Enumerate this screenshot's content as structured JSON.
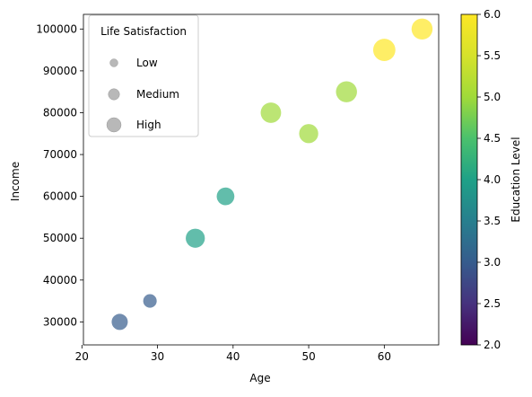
{
  "chart_data": {
    "type": "scatter",
    "title": "",
    "xlabel": "Age",
    "ylabel": "Income",
    "xlim": [
      20.2,
      67.2
    ],
    "ylim": [
      24500,
      103500
    ],
    "xticks": [
      20,
      30,
      40,
      50,
      60
    ],
    "yticks": [
      30000,
      40000,
      50000,
      60000,
      70000,
      80000,
      90000,
      100000
    ],
    "points": [
      {
        "x": 25,
        "y": 30000,
        "education": 3,
        "satisfaction": 1
      },
      {
        "x": 29,
        "y": 35000,
        "education": 3,
        "satisfaction": 0.7
      },
      {
        "x": 35,
        "y": 50000,
        "education": 4,
        "satisfaction": 1.4
      },
      {
        "x": 39,
        "y": 60000,
        "education": 4,
        "satisfaction": 1.2
      },
      {
        "x": 45,
        "y": 80000,
        "education": 5,
        "satisfaction": 1.6
      },
      {
        "x": 50,
        "y": 75000,
        "education": 5,
        "satisfaction": 1.4
      },
      {
        "x": 55,
        "y": 85000,
        "education": 5,
        "satisfaction": 1.7
      },
      {
        "x": 60,
        "y": 95000,
        "education": 6,
        "satisfaction": 1.9
      },
      {
        "x": 65,
        "y": 100000,
        "education": 6,
        "satisfaction": 1.7
      }
    ],
    "marker_alpha": 0.7,
    "colorbar": {
      "label": "Education Level",
      "colormap": "viridis",
      "range": [
        2.0,
        6.0
      ],
      "ticks": [
        2.0,
        2.5,
        3.0,
        3.5,
        4.0,
        4.5,
        5.0,
        5.5,
        6.0
      ],
      "tick_labels": [
        "2.0",
        "2.5",
        "3.0",
        "3.5",
        "4.0",
        "4.5",
        "5.0",
        "5.5",
        "6.0"
      ]
    },
    "legend": {
      "title": "Life Satisfaction",
      "placement": "upper-left",
      "color": "#a0a0a0",
      "entries": [
        {
          "label": "Low",
          "size": 0.55
        },
        {
          "label": "Medium",
          "size": 0.78
        },
        {
          "label": "High",
          "size": 1.0
        }
      ]
    },
    "grid": false
  }
}
